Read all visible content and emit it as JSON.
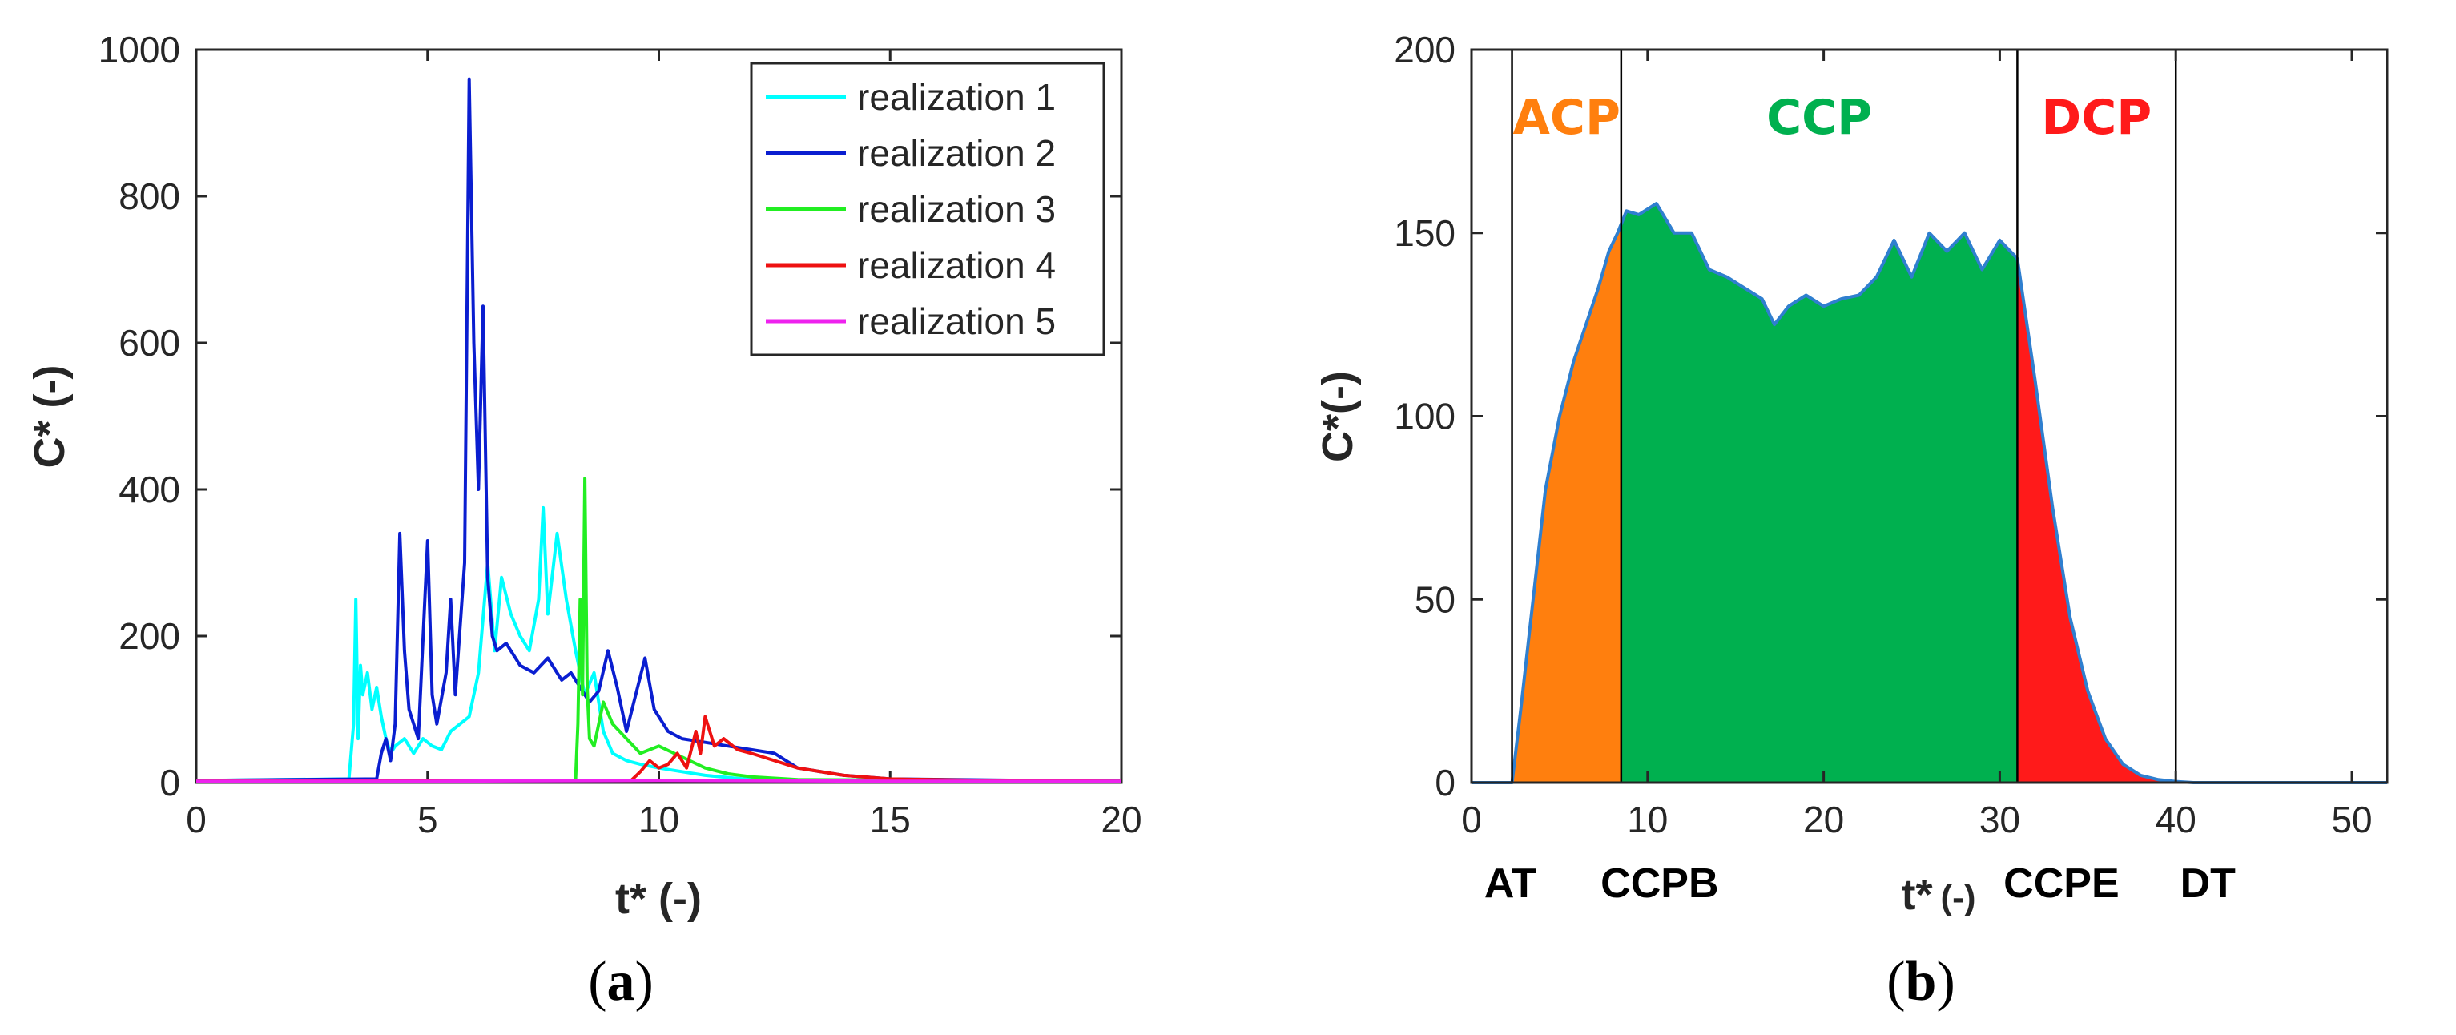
{
  "chart_data": [
    {
      "type": "line",
      "panel": "a",
      "caption_letter": "a",
      "xlabel": "t* (-)",
      "ylabel": "C* (-)",
      "xlim": [
        0,
        20
      ],
      "ylim": [
        0,
        1000
      ],
      "xticks": [
        0,
        5,
        10,
        15,
        20
      ],
      "yticks": [
        0,
        200,
        400,
        600,
        800,
        1000
      ],
      "legend_position": "top-right",
      "series": [
        {
          "name": "realization 1",
          "color": "#00ffff",
          "x": [
            0,
            3.3,
            3.4,
            3.45,
            3.5,
            3.55,
            3.6,
            3.7,
            3.8,
            3.9,
            4.0,
            4.1,
            4.2,
            4.3,
            4.5,
            4.7,
            4.9,
            5.1,
            5.3,
            5.5,
            5.7,
            5.9,
            6.1,
            6.3,
            6.45,
            6.6,
            6.8,
            7.0,
            7.2,
            7.4,
            7.5,
            7.6,
            7.8,
            8.0,
            8.2,
            8.4,
            8.6,
            8.8,
            9.0,
            9.3,
            9.6,
            10.0,
            10.5,
            11.0,
            12.0,
            20
          ],
          "y": [
            3,
            5,
            80,
            250,
            60,
            160,
            120,
            150,
            100,
            130,
            90,
            60,
            40,
            50,
            60,
            40,
            60,
            50,
            45,
            70,
            80,
            90,
            150,
            300,
            180,
            280,
            230,
            200,
            180,
            250,
            375,
            230,
            340,
            250,
            180,
            120,
            150,
            70,
            40,
            30,
            25,
            20,
            15,
            10,
            4,
            2
          ]
        },
        {
          "name": "realization 2",
          "color": "#0a1ed0",
          "x": [
            0,
            3.9,
            4.0,
            4.1,
            4.2,
            4.3,
            4.4,
            4.5,
            4.6,
            4.8,
            5.0,
            5.1,
            5.2,
            5.4,
            5.5,
            5.6,
            5.8,
            5.9,
            6.0,
            6.1,
            6.2,
            6.3,
            6.4,
            6.5,
            6.7,
            7.0,
            7.3,
            7.6,
            7.9,
            8.1,
            8.3,
            8.5,
            8.7,
            8.9,
            9.1,
            9.3,
            9.5,
            9.7,
            9.9,
            10.2,
            10.5,
            11.0,
            11.5,
            12.0,
            12.5,
            13.0,
            14.0,
            15.0,
            18.0,
            20
          ],
          "y": [
            3,
            5,
            40,
            60,
            30,
            80,
            340,
            180,
            100,
            60,
            330,
            120,
            80,
            150,
            250,
            120,
            300,
            960,
            600,
            400,
            650,
            280,
            200,
            180,
            190,
            160,
            150,
            170,
            140,
            150,
            130,
            110,
            125,
            180,
            130,
            70,
            120,
            170,
            100,
            70,
            60,
            55,
            50,
            45,
            40,
            20,
            10,
            5,
            3,
            2
          ]
        },
        {
          "name": "realization 3",
          "color": "#22ee22",
          "x": [
            0,
            8.2,
            8.25,
            8.3,
            8.35,
            8.4,
            8.45,
            8.5,
            8.6,
            8.8,
            9.0,
            9.3,
            9.6,
            10.0,
            10.5,
            11.0,
            11.5,
            12.0,
            13.0,
            20
          ],
          "y": [
            2,
            3,
            80,
            250,
            120,
            415,
            130,
            60,
            50,
            110,
            80,
            60,
            40,
            50,
            35,
            20,
            12,
            8,
            4,
            2
          ]
        },
        {
          "name": "realization 4",
          "color": "#ee1111",
          "x": [
            0,
            9.4,
            9.6,
            9.8,
            10.0,
            10.2,
            10.4,
            10.6,
            10.8,
            10.9,
            11.0,
            11.2,
            11.4,
            11.7,
            12.0,
            12.5,
            13.0,
            14.0,
            15.0,
            17.0,
            20
          ],
          "y": [
            2,
            3,
            15,
            30,
            20,
            25,
            40,
            20,
            70,
            40,
            90,
            50,
            60,
            45,
            40,
            30,
            20,
            10,
            5,
            3,
            2
          ]
        },
        {
          "name": "realization 5",
          "color": "#ee22ee",
          "x": [
            0,
            5,
            10,
            15,
            20
          ],
          "y": [
            2,
            2,
            3,
            2,
            2
          ]
        }
      ]
    },
    {
      "type": "area",
      "panel": "b",
      "caption_letter": "b",
      "xlabel": "t*",
      "xlabel_unit": "(-)",
      "ylabel": "C*(-)",
      "xlim": [
        0,
        52
      ],
      "ylim": [
        0,
        200
      ],
      "xticks": [
        0,
        10,
        20,
        30,
        40,
        50
      ],
      "yticks": [
        0,
        50,
        100,
        150,
        200
      ],
      "line_color": "#2f7fcf",
      "curve": {
        "x": [
          0,
          2.3,
          2.8,
          3.5,
          4.2,
          5.0,
          5.8,
          6.5,
          7.2,
          7.8,
          8.3,
          8.8,
          9.5,
          10.5,
          11.5,
          12.5,
          13.5,
          14.5,
          15.5,
          16.5,
          17.2,
          18.0,
          19.0,
          20.0,
          21.0,
          22.0,
          23.0,
          24.0,
          25.0,
          26.0,
          27.0,
          28.0,
          29.0,
          30.0,
          31.0,
          32.0,
          33.0,
          34.0,
          35.0,
          36.0,
          37.0,
          38.0,
          39.0,
          40.0,
          41.0,
          52.0
        ],
        "y": [
          0,
          0,
          20,
          50,
          80,
          100,
          115,
          125,
          135,
          145,
          150,
          156,
          155,
          158,
          150,
          150,
          140,
          138,
          135,
          132,
          125,
          130,
          133,
          130,
          132,
          133,
          138,
          148,
          138,
          150,
          145,
          150,
          140,
          148,
          143,
          110,
          75,
          45,
          25,
          12,
          5,
          2,
          0.8,
          0.3,
          0,
          0
        ]
      },
      "phases": [
        {
          "label": "ACP",
          "color": "#ff7f0e",
          "from": 2.3,
          "to": 8.5
        },
        {
          "label": "CCP",
          "color": "#00b04f",
          "from": 8.5,
          "to": 31.0
        },
        {
          "label": "DCP",
          "color": "#ff1a1a",
          "from": 31.0,
          "to": 40.0
        }
      ],
      "markers": [
        {
          "label": "AT",
          "x": 2.3
        },
        {
          "label": "CCPB",
          "x": 8.5
        },
        {
          "label": "CCPE",
          "x": 31.0
        },
        {
          "label": "DT",
          "x": 40.0
        }
      ]
    }
  ]
}
